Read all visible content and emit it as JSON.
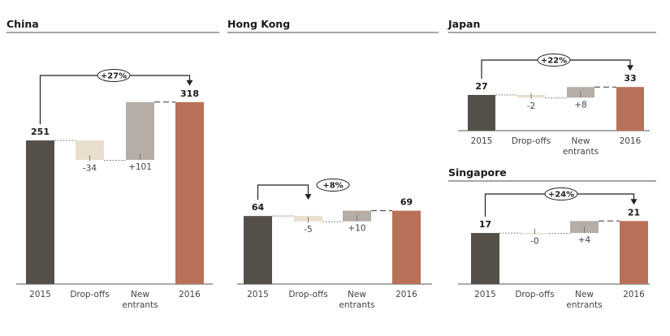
{
  "colors": {
    "start": "#554f49",
    "dropoffs": "#eadfcd",
    "new_entrants": "#b6ada7",
    "end": "#b87158"
  },
  "chart_data": [
    {
      "type": "waterfall",
      "title": "China",
      "categories": [
        "2015",
        "Drop-offs",
        "New entrants"
      ],
      "category_lines": [
        [
          "2015"
        ],
        [
          "Drop-offs"
        ],
        [
          "New",
          "entrants"
        ],
        [
          "2016"
        ]
      ],
      "start": 251,
      "dropoffs": -34,
      "new_entrants": 101,
      "end": 318,
      "labels": [
        "251",
        "-34",
        "+101",
        "318"
      ],
      "growth": "+27%"
    },
    {
      "type": "waterfall",
      "title": "Hong Kong",
      "category_lines": [
        [
          "2015"
        ],
        [
          "Drop-offs"
        ],
        [
          "New",
          "entrants"
        ],
        [
          "2016"
        ]
      ],
      "start": 64,
      "dropoffs": -5,
      "new_entrants": 10,
      "end": 69,
      "labels": [
        "64",
        "-5",
        "+10",
        "69"
      ],
      "growth": "+8%"
    },
    {
      "type": "waterfall",
      "title": "Japan",
      "category_lines": [
        [
          "2015"
        ],
        [
          "Drop-offs"
        ],
        [
          "New",
          "entrants"
        ],
        [
          "2016"
        ]
      ],
      "start": 27,
      "dropoffs": -2,
      "new_entrants": 8,
      "end": 33,
      "labels": [
        "27",
        "-2",
        "+8",
        "33"
      ],
      "growth": "+22%"
    },
    {
      "type": "waterfall",
      "title": "Singapore",
      "category_lines": [
        [
          "2015"
        ],
        [
          "Drop-offs"
        ],
        [
          "New",
          "entrants"
        ],
        [
          "2016"
        ]
      ],
      "start": 17,
      "dropoffs": 0,
      "new_entrants": 4,
      "end": 21,
      "labels": [
        "17",
        "-0",
        "+4",
        "21"
      ],
      "growth": "+24%"
    }
  ]
}
